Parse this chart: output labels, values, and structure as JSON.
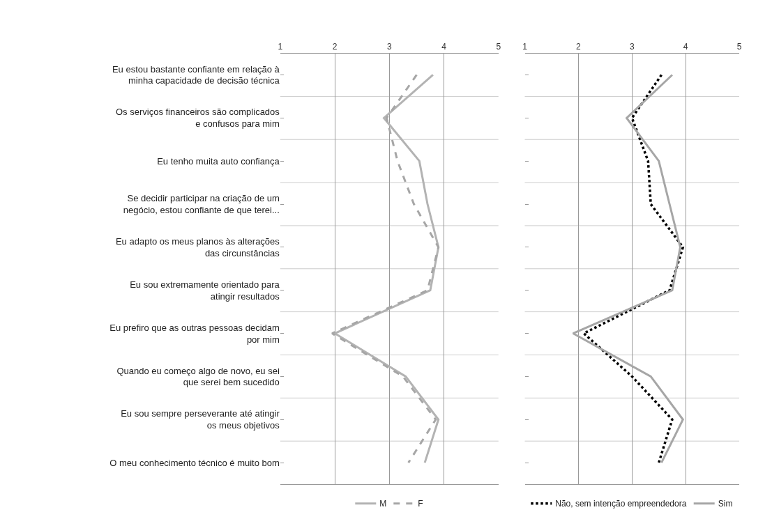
{
  "chart_data": [
    {
      "type": "line",
      "orientation": "horizontal",
      "categories": [
        "Eu estou bastante confiante em relação à minha capacidade de decisão técnica",
        "Os serviços financeiros são complicados e confusos para mim",
        "Eu tenho muita auto confiança",
        "Se decidir participar na criação de um negócio, estou confiante de que terei...",
        "Eu adapto os meus planos às alterações das circunstâncias",
        "Eu sou extremamente orientado para atingir resultados",
        "Eu prefiro que as outras pessoas decidam por mim",
        "Quando eu começo algo de novo, eu sei que serei bem sucedido",
        "Eu sou sempre perseverante até atingir os meus objetivos",
        "O meu conhecimento técnico é muito bom"
      ],
      "series": [
        {
          "name": "M",
          "color": "#b3b3b3",
          "line_style": "solid",
          "values": [
            3.8,
            2.9,
            3.55,
            3.7,
            3.9,
            3.75,
            2.0,
            3.3,
            3.9,
            3.65
          ]
        },
        {
          "name": "F",
          "color": "#a6a6a6",
          "line_style": "dashed",
          "values": [
            3.5,
            2.95,
            3.15,
            3.45,
            3.9,
            3.7,
            1.95,
            3.25,
            3.85,
            3.35
          ]
        }
      ],
      "xlim": [
        1,
        5
      ],
      "xticks": [
        1,
        2,
        3,
        4,
        5
      ],
      "grid": true,
      "legend": "bottom"
    },
    {
      "type": "line",
      "orientation": "horizontal",
      "categories": [
        null,
        null,
        null,
        null,
        null,
        null,
        null,
        null,
        null,
        null
      ],
      "series": [
        {
          "name": "Não, sem intenção empreendedora",
          "color": "#000000",
          "line_style": "dotted",
          "values": [
            3.55,
            3.0,
            3.3,
            3.35,
            3.95,
            3.7,
            2.1,
            3.0,
            3.75,
            3.5
          ]
        },
        {
          "name": "Sim",
          "color": "#a6a6a6",
          "line_style": "solid",
          "values": [
            3.75,
            2.9,
            3.5,
            3.7,
            3.9,
            3.75,
            1.9,
            3.35,
            3.95,
            3.55
          ]
        }
      ],
      "xlim": [
        1,
        5
      ],
      "xticks": [
        1,
        2,
        3,
        4,
        5
      ],
      "grid": true,
      "legend": "bottom",
      "tick_labels": "x"
    }
  ]
}
